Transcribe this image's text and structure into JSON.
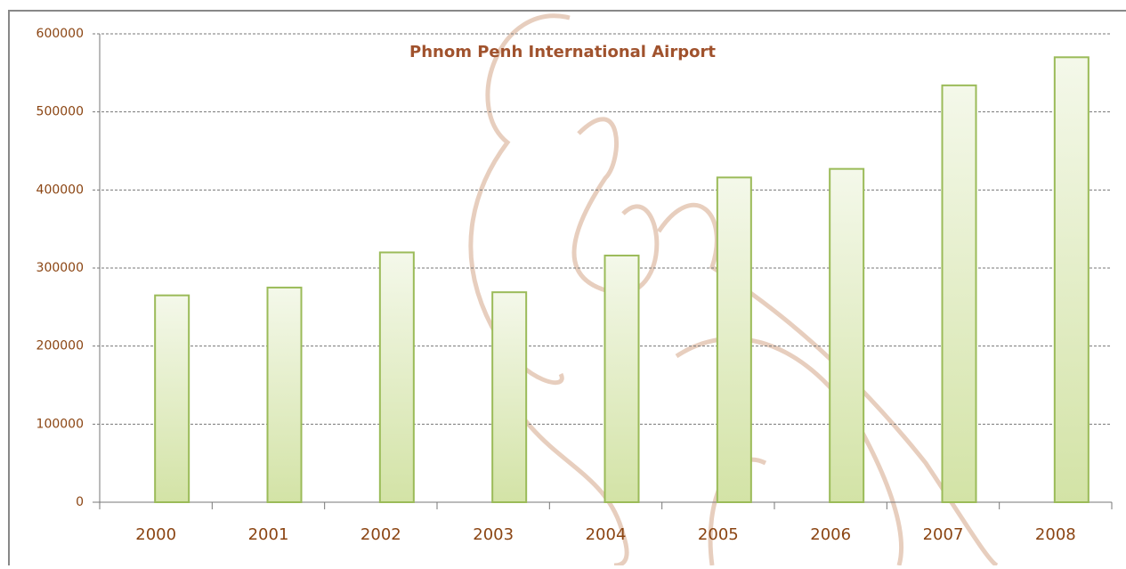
{
  "chart_data": {
    "type": "bar",
    "title": "Phnom Penh International Airport",
    "categories": [
      "2000",
      "2001",
      "2002",
      "2003",
      "2004",
      "2005",
      "2006",
      "2007",
      "2008"
    ],
    "values": [
      265000,
      275000,
      320000,
      269000,
      316000,
      416000,
      427000,
      534000,
      570000
    ],
    "color": "#9bbb59",
    "ylim": [
      0,
      600000
    ],
    "yticks": [
      0,
      100000,
      200000,
      300000,
      400000,
      500000,
      600000
    ],
    "grid": true
  }
}
